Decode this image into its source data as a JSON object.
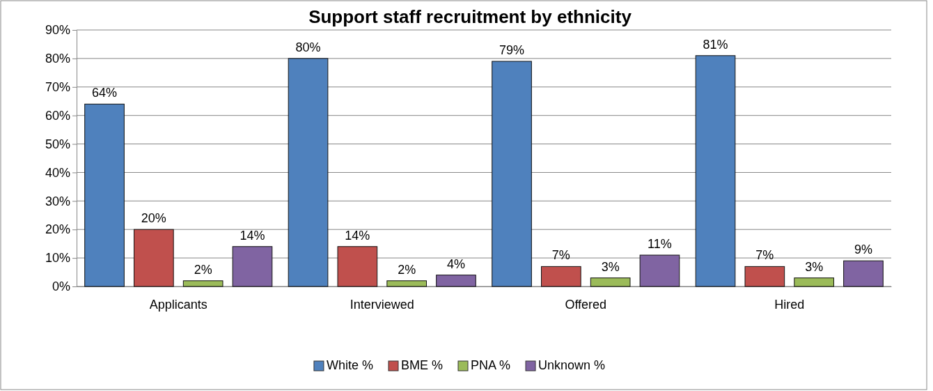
{
  "chart_data": {
    "type": "bar",
    "title": "Support staff recruitment by ethnicity",
    "categories": [
      "Applicants",
      "Interviewed",
      "Offered",
      "Hired"
    ],
    "series": [
      {
        "name": "White %",
        "color": "#4f81bd",
        "values": [
          64,
          80,
          79,
          81
        ],
        "value_labels": [
          "64%",
          "80%",
          "79%",
          "81%"
        ]
      },
      {
        "name": "BME %",
        "color": "#c0504d",
        "values": [
          20,
          14,
          7,
          7
        ],
        "value_labels": [
          "20%",
          "14%",
          "7%",
          "7%"
        ]
      },
      {
        "name": "PNA %",
        "color": "#9bbb59",
        "values": [
          2,
          2,
          3,
          3
        ],
        "value_labels": [
          "2%",
          "2%",
          "3%",
          "3%"
        ]
      },
      {
        "name": "Unknown %",
        "color": "#8064a2",
        "values": [
          14,
          4,
          11,
          9
        ],
        "value_labels": [
          "14%",
          "4%",
          "11%",
          "9%"
        ]
      }
    ],
    "ylim": [
      0,
      90
    ],
    "yticks": [
      {
        "value": 0,
        "label": "0%"
      },
      {
        "value": 10,
        "label": "10%"
      },
      {
        "value": 20,
        "label": "20%"
      },
      {
        "value": 30,
        "label": "30%"
      },
      {
        "value": 40,
        "label": "40%"
      },
      {
        "value": 50,
        "label": "50%"
      },
      {
        "value": 60,
        "label": "60%"
      },
      {
        "value": 70,
        "label": "70%"
      },
      {
        "value": 80,
        "label": "80%"
      },
      {
        "value": 90,
        "label": "90%"
      }
    ],
    "grid": "y",
    "legend": "bottom"
  }
}
